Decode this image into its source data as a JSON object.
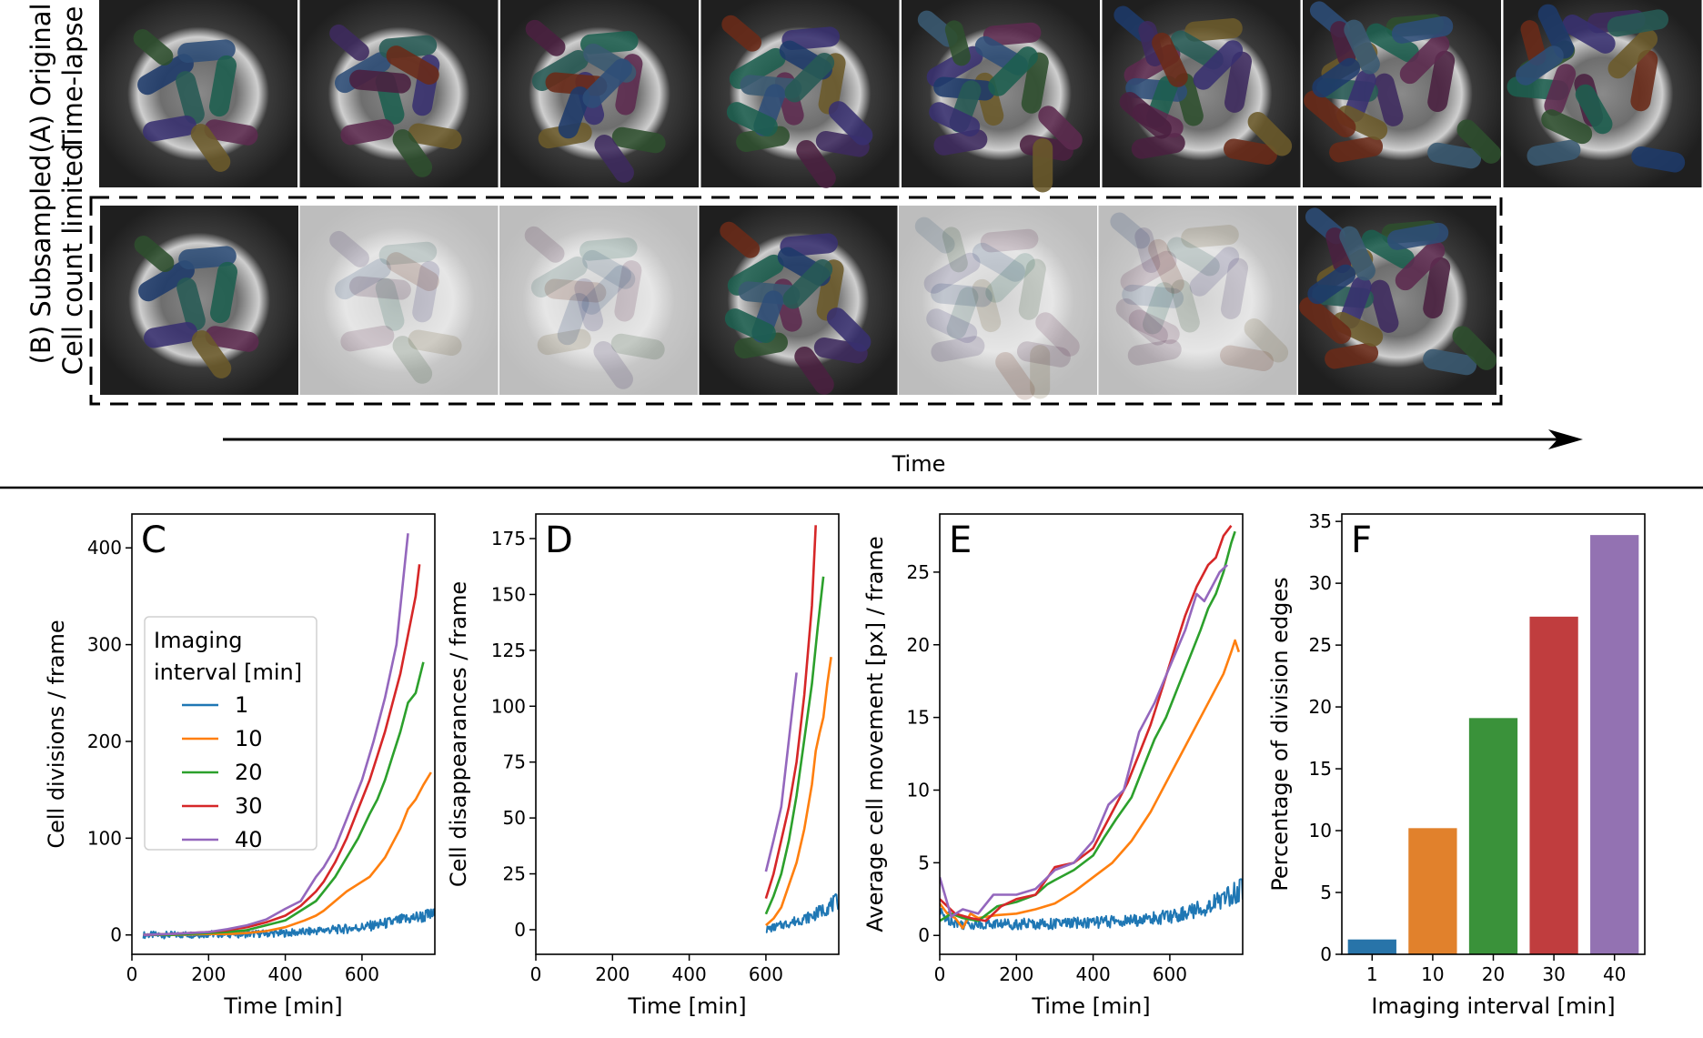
{
  "colors": {
    "c1": "#1f77b4",
    "c10": "#ff7f0e",
    "c20": "#2ca02c",
    "c30": "#d62728",
    "c40": "#9467bd",
    "bar1": "#2874a9",
    "bar10": "#e1812c",
    "bar20": "#3a923a",
    "bar30": "#c03d3e",
    "bar40": "#9372b2"
  },
  "top": {
    "row_a_label": [
      "(A) Original",
      "Time-lapse"
    ],
    "row_b_label": [
      "(B) Subsampled",
      "Cell count limited"
    ],
    "frames_a": [
      0,
      1,
      2,
      3,
      4,
      5,
      6,
      7
    ],
    "frames_b": [
      {
        "frame": 0,
        "kept": true
      },
      {
        "frame": 1,
        "kept": false
      },
      {
        "frame": 2,
        "kept": false
      },
      {
        "frame": 3,
        "kept": true
      },
      {
        "frame": 4,
        "kept": false
      },
      {
        "frame": 5,
        "kept": false
      },
      {
        "frame": 6,
        "kept": true
      }
    ],
    "time_label": "Time"
  },
  "chart_data": [
    {
      "id": "C",
      "type": "line",
      "letter": "C",
      "xlabel": "Time [min]",
      "ylabel": "Cell divisions / frame",
      "xlim": [
        0,
        790
      ],
      "ylim": [
        -20,
        435
      ],
      "xticks": [
        0,
        200,
        400,
        600
      ],
      "yticks": [
        0,
        100,
        200,
        300,
        400
      ],
      "legend": {
        "title": [
          "Imaging",
          "interval [min]"
        ],
        "entries": [
          "1",
          "10",
          "20",
          "30",
          "40"
        ],
        "loc": "center-left"
      },
      "series": [
        {
          "name": "1",
          "color": "#1f77b4",
          "noisy": true,
          "x": [
            30,
            100,
            200,
            300,
            400,
            450,
            500,
            550,
            600,
            650,
            700,
            740,
            790
          ],
          "y": [
            0,
            0,
            1,
            1,
            2,
            3,
            5,
            6,
            8,
            11,
            15,
            18,
            21
          ]
        },
        {
          "name": "10",
          "color": "#ff7f0e",
          "x": [
            30,
            100,
            200,
            250,
            300,
            350,
            400,
            450,
            480,
            500,
            530,
            560,
            600,
            620,
            640,
            660,
            680,
            700,
            720,
            740,
            760,
            780
          ],
          "y": [
            0,
            0,
            1,
            1,
            2,
            4,
            8,
            15,
            20,
            25,
            35,
            45,
            55,
            60,
            70,
            80,
            95,
            110,
            130,
            140,
            155,
            168
          ]
        },
        {
          "name": "20",
          "color": "#2ca02c",
          "x": [
            30,
            100,
            200,
            250,
            300,
            350,
            400,
            440,
            480,
            500,
            530,
            560,
            590,
            620,
            640,
            660,
            680,
            700,
            720,
            740,
            760
          ],
          "y": [
            0,
            0,
            2,
            3,
            5,
            10,
            15,
            25,
            35,
            45,
            60,
            80,
            100,
            125,
            140,
            160,
            185,
            210,
            240,
            250,
            282
          ]
        },
        {
          "name": "30",
          "color": "#d62728",
          "x": [
            30,
            100,
            200,
            250,
            300,
            350,
            400,
            440,
            480,
            500,
            530,
            560,
            590,
            620,
            640,
            660,
            680,
            700,
            720,
            740,
            750
          ],
          "y": [
            0,
            1,
            3,
            5,
            8,
            13,
            20,
            30,
            45,
            55,
            75,
            100,
            130,
            160,
            185,
            210,
            240,
            270,
            310,
            350,
            383
          ]
        },
        {
          "name": "40",
          "color": "#9467bd",
          "x": [
            30,
            100,
            200,
            250,
            300,
            350,
            400,
            440,
            480,
            500,
            530,
            560,
            600,
            630,
            660,
            690,
            720
          ],
          "y": [
            0,
            1,
            3,
            6,
            10,
            16,
            27,
            35,
            60,
            70,
            90,
            120,
            160,
            200,
            245,
            300,
            415
          ]
        }
      ]
    },
    {
      "id": "D",
      "type": "line",
      "letter": "D",
      "xlabel": "Time [min]",
      "ylabel": "Cell disappearances / frame",
      "xlim": [
        0,
        790
      ],
      "ylim": [
        -11,
        186
      ],
      "xticks": [
        0,
        200,
        400,
        600
      ],
      "yticks": [
        0,
        25,
        50,
        75,
        100,
        125,
        150,
        175
      ],
      "series": [
        {
          "name": "1",
          "color": "#1f77b4",
          "noisy": true,
          "x": [
            600,
            620,
            640,
            660,
            680,
            700,
            720,
            740,
            760,
            790
          ],
          "y": [
            0,
            1,
            2,
            3,
            4,
            5,
            6,
            8,
            10,
            13
          ]
        },
        {
          "name": "10",
          "color": "#ff7f0e",
          "x": [
            600,
            620,
            640,
            660,
            680,
            700,
            720,
            730,
            740,
            750,
            760,
            770
          ],
          "y": [
            2,
            5,
            10,
            20,
            30,
            45,
            65,
            80,
            88,
            95,
            110,
            122
          ]
        },
        {
          "name": "20",
          "color": "#2ca02c",
          "x": [
            600,
            620,
            640,
            660,
            680,
            700,
            720,
            735,
            750
          ],
          "y": [
            7,
            15,
            25,
            40,
            60,
            85,
            110,
            135,
            158
          ]
        },
        {
          "name": "30",
          "color": "#d62728",
          "x": [
            600,
            620,
            640,
            660,
            680,
            700,
            720,
            730
          ],
          "y": [
            14,
            25,
            40,
            55,
            75,
            105,
            145,
            181
          ]
        },
        {
          "name": "40",
          "color": "#9467bd",
          "x": [
            600,
            620,
            640,
            660,
            680
          ],
          "y": [
            26,
            40,
            55,
            85,
            115
          ]
        }
      ]
    },
    {
      "id": "E",
      "type": "line",
      "letter": "E",
      "xlabel": "Time [min]",
      "ylabel": "Average cell movement [px] / frame",
      "xlim": [
        0,
        790
      ],
      "ylim": [
        -1.3,
        29
      ],
      "xticks": [
        0,
        200,
        400,
        600
      ],
      "yticks": [
        0,
        5,
        10,
        15,
        20,
        25
      ],
      "series": [
        {
          "name": "1",
          "color": "#1f77b4",
          "noisy": true,
          "x": [
            0,
            50,
            100,
            200,
            300,
            400,
            500,
            600,
            650,
            700,
            750,
            790
          ],
          "y": [
            1.5,
            0.8,
            0.8,
            0.8,
            0.8,
            0.9,
            1.0,
            1.3,
            1.6,
            2.0,
            2.7,
            3.2
          ]
        },
        {
          "name": "10",
          "color": "#ff7f0e",
          "x": [
            0,
            20,
            40,
            60,
            80,
            100,
            150,
            200,
            250,
            300,
            350,
            400,
            450,
            500,
            550,
            600,
            650,
            700,
            720,
            740,
            760,
            770,
            780
          ],
          "y": [
            2.2,
            1.5,
            1.2,
            0.5,
            1.5,
            1.2,
            1.4,
            1.5,
            1.8,
            2.2,
            3.0,
            4.0,
            5.0,
            6.5,
            8.5,
            11.0,
            13.5,
            16.0,
            17.0,
            18.0,
            19.5,
            20.3,
            19.5
          ]
        },
        {
          "name": "20",
          "color": "#2ca02c",
          "x": [
            0,
            30,
            60,
            100,
            150,
            200,
            250,
            280,
            300,
            350,
            400,
            430,
            460,
            500,
            530,
            560,
            590,
            620,
            650,
            680,
            700,
            720,
            740,
            760,
            770
          ],
          "y": [
            1.0,
            1.5,
            1.2,
            1.0,
            2.0,
            2.3,
            2.8,
            3.5,
            3.8,
            4.5,
            5.5,
            6.8,
            8.0,
            9.5,
            11.5,
            13.5,
            15.0,
            17.0,
            19.0,
            21.0,
            22.5,
            23.5,
            25.0,
            27.0,
            27.8
          ]
        },
        {
          "name": "30",
          "color": "#d62728",
          "x": [
            0,
            40,
            80,
            120,
            160,
            200,
            250,
            300,
            350,
            400,
            430,
            460,
            490,
            520,
            550,
            580,
            610,
            640,
            670,
            700,
            720,
            740,
            760
          ],
          "y": [
            2.5,
            1.5,
            1.2,
            1.0,
            2.0,
            2.5,
            2.8,
            4.7,
            5.0,
            6.0,
            7.5,
            9.0,
            10.5,
            12.5,
            14.5,
            17.0,
            19.5,
            22.0,
            24.0,
            25.5,
            26.0,
            27.5,
            28.2
          ]
        },
        {
          "name": "40",
          "color": "#9467bd",
          "x": [
            0,
            30,
            60,
            100,
            140,
            160,
            200,
            250,
            300,
            350,
            400,
            440,
            480,
            520,
            560,
            600,
            640,
            670,
            690,
            710,
            730,
            750
          ],
          "y": [
            4.0,
            1.3,
            1.8,
            1.5,
            2.8,
            2.8,
            2.8,
            3.2,
            4.5,
            5.0,
            6.5,
            9.0,
            10.0,
            14.0,
            16.0,
            18.5,
            21.0,
            23.5,
            23.0,
            24.0,
            25.0,
            25.5
          ]
        }
      ]
    },
    {
      "id": "F",
      "type": "bar",
      "letter": "F",
      "xlabel": "Imaging interval [min]",
      "ylabel": "Percentage of division edges",
      "categories": [
        "1",
        "10",
        "20",
        "30",
        "40"
      ],
      "values": [
        1.2,
        10.2,
        19.1,
        27.3,
        33.9
      ],
      "ylim": [
        0,
        35.6
      ],
      "yticks": [
        0,
        5,
        10,
        15,
        20,
        25,
        30,
        35
      ]
    }
  ]
}
